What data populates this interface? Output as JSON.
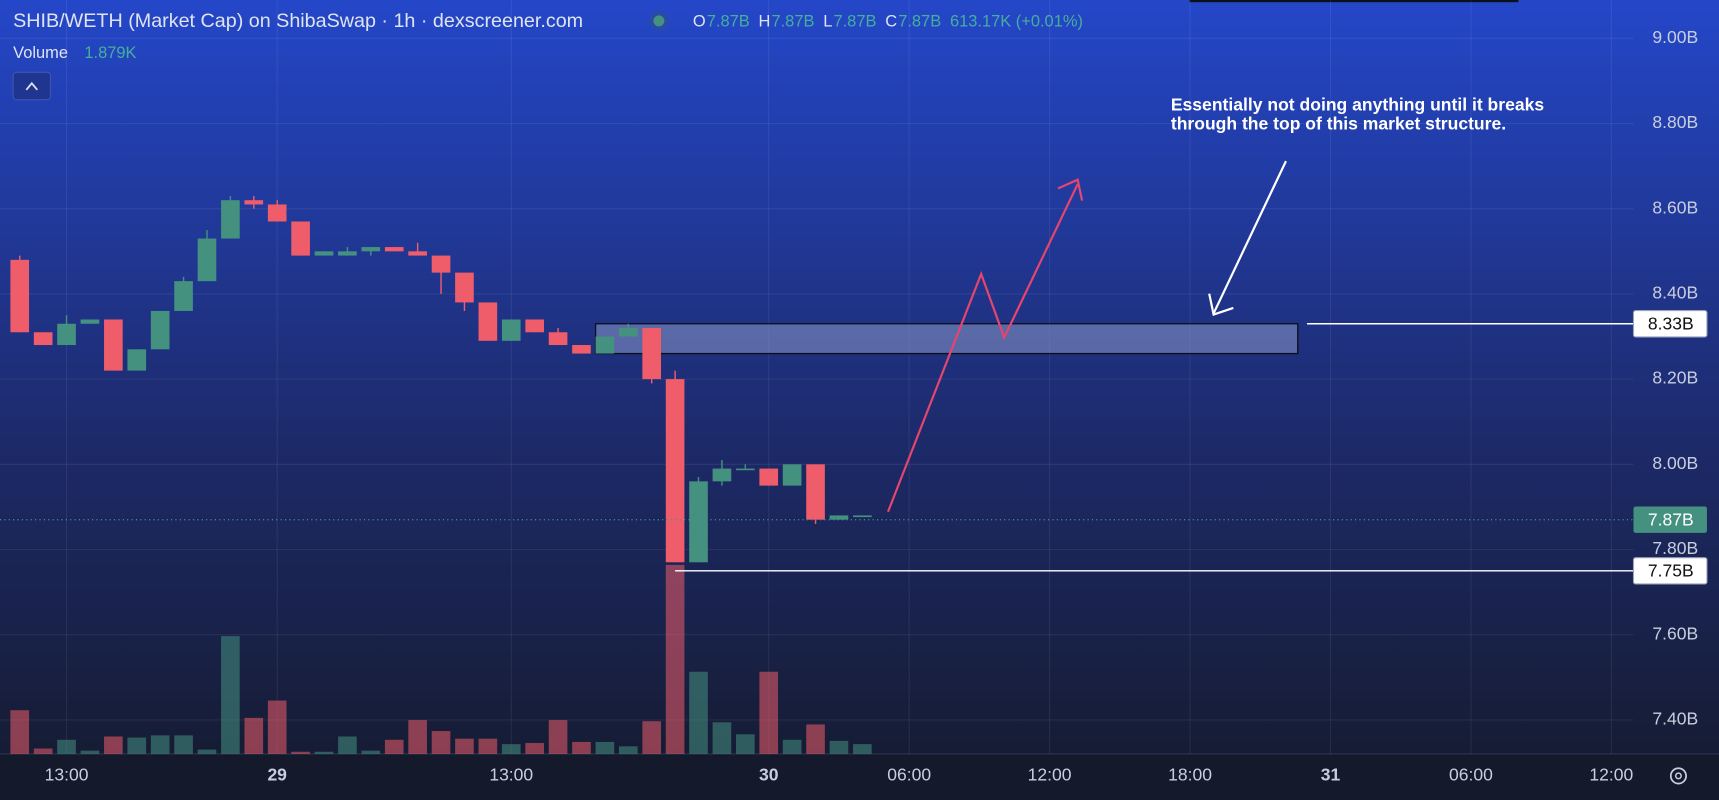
{
  "chart_data": {
    "type": "candlestick",
    "title": "SHIB/WETH (Market Cap) on ShibaSwap · 1h · dexscreener.com",
    "ohlc_legend": [
      {
        "key": "O",
        "value": "7.87B"
      },
      {
        "key": "H",
        "value": "7.87B"
      },
      {
        "key": "L",
        "value": "7.87B"
      },
      {
        "key": "C",
        "value": "7.87B"
      }
    ],
    "change": "613.17K (+0.01%)",
    "volume_title": "Volume",
    "volume_last": "1.879K",
    "annotation": "Essentially not doing anything until it breaks through the top of this market structure.",
    "categories": [
      null,
      null,
      "13:00",
      null,
      null,
      null,
      null,
      null,
      null,
      null,
      null,
      "29",
      null,
      null,
      null,
      null,
      null,
      null,
      null,
      null,
      null,
      "13:00",
      null,
      null,
      null,
      null,
      null,
      null,
      null,
      null,
      null,
      null,
      "30",
      null,
      null,
      null,
      null,
      null,
      "06:00",
      null,
      null,
      null,
      null,
      null,
      "12:00",
      null,
      null,
      null,
      null,
      null,
      "18:00",
      null,
      null,
      null,
      null,
      null,
      "31",
      null,
      null,
      null,
      null,
      null,
      "06:00",
      null,
      null,
      null,
      null,
      null,
      "12:00"
    ],
    "open": [
      8.48,
      8.31,
      8.28,
      8.33,
      8.34,
      8.22,
      8.27,
      8.36,
      8.43,
      8.53,
      8.62,
      8.61,
      8.57,
      8.49,
      8.49,
      8.5,
      8.51,
      8.5,
      8.49,
      8.45,
      8.38,
      8.29,
      8.34,
      8.31,
      8.28,
      8.26,
      8.3,
      8.32,
      8.2,
      7.77,
      7.96,
      7.99,
      7.99,
      7.95,
      8.0,
      7.87,
      7.88,
      null,
      null,
      null,
      null,
      null,
      null,
      null,
      null,
      null,
      null,
      null,
      null,
      null,
      null,
      null,
      null,
      null,
      null,
      null,
      null,
      null,
      null,
      null,
      null,
      null,
      null,
      null,
      null,
      null,
      null,
      null,
      null
    ],
    "high": [
      8.49,
      8.31,
      8.35,
      8.34,
      8.34,
      8.27,
      8.36,
      8.44,
      8.55,
      8.63,
      8.63,
      8.62,
      8.57,
      8.5,
      8.51,
      8.51,
      8.51,
      8.52,
      8.49,
      8.45,
      8.38,
      8.34,
      8.34,
      8.32,
      8.28,
      8.3,
      8.33,
      8.32,
      8.22,
      7.97,
      8.01,
      8.0,
      7.99,
      8.0,
      8.0,
      7.88,
      7.88,
      null,
      null,
      null,
      null,
      null,
      null,
      null,
      null,
      null,
      null,
      null,
      null,
      null,
      null,
      null,
      null,
      null,
      null,
      null,
      null,
      null,
      null,
      null,
      null,
      null,
      null,
      null,
      null,
      null,
      null,
      null,
      null
    ],
    "low": [
      8.31,
      8.28,
      8.28,
      8.33,
      8.22,
      8.22,
      8.27,
      8.36,
      8.43,
      8.53,
      8.6,
      8.57,
      8.49,
      8.49,
      8.49,
      8.49,
      8.5,
      8.49,
      8.4,
      8.36,
      8.29,
      8.29,
      8.31,
      8.28,
      8.26,
      8.26,
      8.3,
      8.19,
      7.77,
      7.77,
      7.95,
      7.99,
      7.95,
      7.95,
      7.86,
      7.87,
      7.88,
      null,
      null,
      null,
      null,
      null,
      null,
      null,
      null,
      null,
      null,
      null,
      null,
      null,
      null,
      null,
      null,
      null,
      null,
      null,
      null,
      null,
      null,
      null,
      null,
      null,
      null,
      null,
      null,
      null,
      null,
      null,
      null
    ],
    "close": [
      8.31,
      8.28,
      8.33,
      8.34,
      8.22,
      8.27,
      8.36,
      8.43,
      8.53,
      8.62,
      8.61,
      8.57,
      8.49,
      8.5,
      8.5,
      8.51,
      8.5,
      8.49,
      8.45,
      8.38,
      8.29,
      8.34,
      8.31,
      8.28,
      8.26,
      8.3,
      8.32,
      8.2,
      7.77,
      7.96,
      7.99,
      7.99,
      7.95,
      8.0,
      7.87,
      7.88,
      7.88,
      null,
      null,
      null,
      null,
      null,
      null,
      null,
      null,
      null,
      null,
      null,
      null,
      null,
      null,
      null,
      null,
      null,
      null,
      null,
      null,
      null,
      null,
      null,
      null,
      null,
      null,
      null,
      null,
      null,
      null,
      null,
      null
    ],
    "volume": [
      8.35,
      1.04,
      2.71,
      0.63,
      3.34,
      3.13,
      3.55,
      3.55,
      0.84,
      22.5,
      6.89,
      10.2,
      0.42,
      0.42,
      3.34,
      0.63,
      2.71,
      6.47,
      4.38,
      2.92,
      2.92,
      1.88,
      2.09,
      6.47,
      2.3,
      2.3,
      1.46,
      6.26,
      36.1,
      15.7,
      6.05,
      3.76,
      15.7,
      2.71,
      5.64,
      2.5,
      1.879,
      null,
      null,
      null,
      null,
      null,
      null,
      null,
      null,
      null,
      null,
      null,
      null,
      null,
      null,
      null,
      null,
      null,
      null,
      null,
      null,
      null,
      null,
      null,
      null,
      null,
      null,
      null,
      null,
      null,
      null,
      null,
      null
    ],
    "up_color": "#45917f",
    "down_color": "#ef5d6a",
    "ylim": [
      7.32,
      9.09
    ],
    "yticks": [
      {
        "value": 7.4,
        "label": "7.40B"
      },
      {
        "value": 7.6,
        "label": "7.60B"
      },
      {
        "value": 7.8,
        "label": "7.80B"
      },
      {
        "value": 8.0,
        "label": "8.00B"
      },
      {
        "value": 8.2,
        "label": "8.20B"
      },
      {
        "value": 8.4,
        "label": "8.40B"
      },
      {
        "value": 8.6,
        "label": "8.60B"
      },
      {
        "value": 8.8,
        "label": "8.80B"
      },
      {
        "value": 9.0,
        "label": "9.00B"
      }
    ],
    "volume_lim": [
      0,
      50
    ],
    "zone": {
      "top": 8.33,
      "bottom": 8.26
    },
    "current_price": {
      "value": 7.87,
      "label": "7.87B"
    },
    "price_lines": [
      {
        "value": 8.33,
        "label": "8.33B"
      },
      {
        "value": 7.75,
        "label": "7.75B"
      }
    ],
    "grid": true
  }
}
